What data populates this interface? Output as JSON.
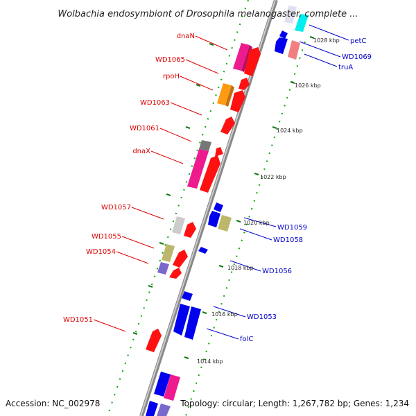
{
  "title": "Wolbachia endosymbiont of Drosophila melanogaster, complete ...",
  "footer": {
    "accession": "Accession: NC_002978",
    "summary": "Topology: circular; Length: 1,267,782 bp; Genes: 1,234"
  },
  "colors": {
    "left_label": "#dd0000",
    "right_label": "#0000cc",
    "backbone": "#888888",
    "tick_dot": "#00aa00"
  },
  "scale_labels": [
    "1028 kbp",
    "1026 kbp",
    "1024 kbp",
    "1022 kbp",
    "1020 kbp",
    "1018 kbp",
    "1016 kbp",
    "1014 kbp"
  ],
  "left_labels": [
    "dnaN",
    "WD1065",
    "rpoH",
    "WD1063",
    "WD1061",
    "dnaX",
    "WD1057",
    "WD1055",
    "WD1054",
    "WD1051"
  ],
  "right_labels": [
    "petC",
    "WD1069",
    "truA",
    "WD1059",
    "WD1058",
    "WD1056",
    "WD1053",
    "folC"
  ]
}
